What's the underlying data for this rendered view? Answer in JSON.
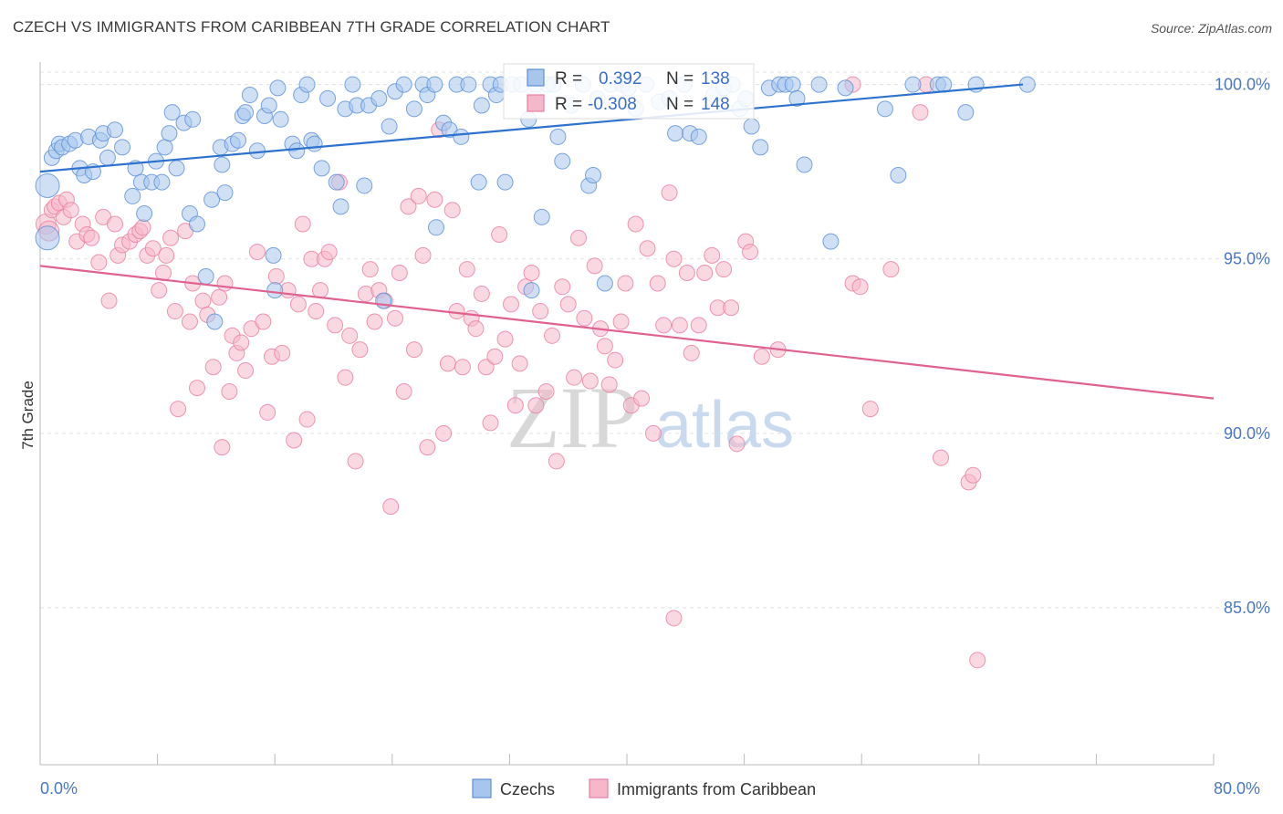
{
  "title": "CZECH VS IMMIGRANTS FROM CARIBBEAN 7TH GRADE CORRELATION CHART",
  "source": "Source: ZipAtlas.com",
  "colors": {
    "blue_fill": "#a8c6ec",
    "blue_stroke": "#5b8fd6",
    "blue_line": "#2e72cf",
    "pink_fill": "#f5b8cb",
    "pink_stroke": "#e87ea0",
    "pink_line": "#e0628e",
    "grid": "#e2e2e2",
    "axis_text": "#4a78c4"
  },
  "watermark": {
    "zip": "ZIP",
    "atlas": "atlas"
  },
  "stats": {
    "r_label": "R =",
    "n_label": "N =",
    "czech_r": "0.392",
    "czech_n": "138",
    "carib_r": "-0.308",
    "carib_n": "148"
  },
  "legend": {
    "czech": "Czechs",
    "carib": "Immigrants from Caribbean"
  },
  "chart_data": {
    "type": "scatter",
    "title": "CZECH VS IMMIGRANTS FROM CARIBBEAN 7TH GRADE CORRELATION CHART",
    "xlabel": "",
    "ylabel": "7th Grade",
    "xlim": [
      0,
      80
    ],
    "ylim": [
      80.5,
      100.8
    ],
    "x_ticks": [
      "0.0%",
      "80.0%"
    ],
    "y_ticks": [
      {
        "value": 100,
        "label": "100.0%"
      },
      {
        "value": 95,
        "label": "95.0%"
      },
      {
        "value": 90,
        "label": "90.0%"
      },
      {
        "value": 85,
        "label": "85.0%"
      }
    ],
    "legend_position": "bottom",
    "grid": true,
    "series": [
      {
        "name": "Czechs",
        "trend": {
          "x": [
            0,
            67
          ],
          "y": [
            97.5,
            100.0
          ]
        },
        "points": [
          [
            0.5,
            97.1
          ],
          [
            0.5,
            95.6
          ],
          [
            0.8,
            97.9
          ],
          [
            1.1,
            98.1
          ],
          [
            1.3,
            98.3
          ],
          [
            1.5,
            98.2
          ],
          [
            2,
            98.3
          ],
          [
            2.4,
            98.4
          ],
          [
            2.7,
            97.6
          ],
          [
            3,
            97.4
          ],
          [
            3.3,
            98.5
          ],
          [
            3.6,
            97.5
          ],
          [
            4.1,
            98.4
          ],
          [
            4.3,
            98.6
          ],
          [
            4.6,
            97.9
          ],
          [
            5.1,
            98.7
          ],
          [
            5.6,
            98.2
          ],
          [
            6.3,
            96.8
          ],
          [
            6.5,
            97.6
          ],
          [
            6.9,
            97.2
          ],
          [
            7.1,
            96.3
          ],
          [
            7.6,
            97.2
          ],
          [
            7.9,
            97.8
          ],
          [
            8.3,
            97.2
          ],
          [
            8.5,
            98.2
          ],
          [
            8.8,
            98.6
          ],
          [
            9,
            99.2
          ],
          [
            9.3,
            97.6
          ],
          [
            9.8,
            98.9
          ],
          [
            10.4,
            99
          ],
          [
            10.2,
            96.3
          ],
          [
            10.7,
            96
          ],
          [
            11.3,
            94.5
          ],
          [
            11.7,
            96.7
          ],
          [
            11.9,
            93.2
          ],
          [
            12.3,
            98.2
          ],
          [
            12.4,
            97.7
          ],
          [
            12.6,
            96.9
          ],
          [
            13.1,
            98.3
          ],
          [
            13.5,
            98.4
          ],
          [
            13.8,
            99.1
          ],
          [
            14,
            99.2
          ],
          [
            14.3,
            99.7
          ],
          [
            14.8,
            98.1
          ],
          [
            15.3,
            99.1
          ],
          [
            15.6,
            99.4
          ],
          [
            15.9,
            95.1
          ],
          [
            16,
            94.1
          ],
          [
            16.2,
            99.9
          ],
          [
            16.4,
            99
          ],
          [
            17.2,
            98.3
          ],
          [
            17.5,
            98.1
          ],
          [
            17.8,
            99.7
          ],
          [
            18.2,
            100
          ],
          [
            18.5,
            98.4
          ],
          [
            18.7,
            98.3
          ],
          [
            19.2,
            97.6
          ],
          [
            19.6,
            99.6
          ],
          [
            20.2,
            97.2
          ],
          [
            20.5,
            96.5
          ],
          [
            20.8,
            99.3
          ],
          [
            21.3,
            100
          ],
          [
            21.6,
            99.4
          ],
          [
            22.1,
            97.1
          ],
          [
            22.4,
            99.4
          ],
          [
            23.1,
            99.6
          ],
          [
            23.4,
            93.8
          ],
          [
            23.8,
            98.8
          ],
          [
            24.2,
            99.8
          ],
          [
            24.8,
            100
          ],
          [
            25.5,
            99.3
          ],
          [
            26.1,
            100
          ],
          [
            26.4,
            99.7
          ],
          [
            26.9,
            100
          ],
          [
            27,
            95.9
          ],
          [
            27.5,
            98.9
          ],
          [
            27.9,
            98.7
          ],
          [
            28.4,
            100
          ],
          [
            28.7,
            98.5
          ],
          [
            29.2,
            100
          ],
          [
            29.9,
            97.2
          ],
          [
            30.1,
            99.4
          ],
          [
            30.7,
            100
          ],
          [
            31.1,
            99.7
          ],
          [
            31.4,
            100
          ],
          [
            31.7,
            97.2
          ],
          [
            32.2,
            100
          ],
          [
            32.8,
            100
          ],
          [
            33.3,
            99
          ],
          [
            33.5,
            94.1
          ],
          [
            33.8,
            100
          ],
          [
            34.2,
            96.2
          ],
          [
            34.6,
            100
          ],
          [
            35,
            100
          ],
          [
            35.3,
            98.5
          ],
          [
            35.6,
            97.8
          ],
          [
            36.2,
            99.4
          ],
          [
            37,
            100
          ],
          [
            37.4,
            97.1
          ],
          [
            37.7,
            97.4
          ],
          [
            38,
            99.6
          ],
          [
            38.5,
            94.3
          ],
          [
            38.9,
            100
          ],
          [
            39.7,
            100
          ],
          [
            40.1,
            99.9
          ],
          [
            40.6,
            99.3
          ],
          [
            41.3,
            100
          ],
          [
            42.2,
            99.5
          ],
          [
            42.9,
            99.6
          ],
          [
            43.3,
            98.6
          ],
          [
            43.9,
            100
          ],
          [
            44.3,
            98.6
          ],
          [
            44.9,
            98.5
          ],
          [
            45.9,
            99.7
          ],
          [
            46.6,
            99.9
          ],
          [
            47.2,
            100
          ],
          [
            47.7,
            99.3
          ],
          [
            48.1,
            99.6
          ],
          [
            48.5,
            98.8
          ],
          [
            49.1,
            98.2
          ],
          [
            49.7,
            99.9
          ],
          [
            50.4,
            100
          ],
          [
            50.8,
            100
          ],
          [
            51.3,
            100
          ],
          [
            51.6,
            99.6
          ],
          [
            52.1,
            97.7
          ],
          [
            53.1,
            100
          ],
          [
            53.9,
            95.5
          ],
          [
            54.9,
            99.9
          ],
          [
            57.6,
            99.3
          ],
          [
            58.5,
            97.4
          ],
          [
            59.5,
            100
          ],
          [
            61.2,
            100
          ],
          [
            61.6,
            100
          ],
          [
            63.1,
            99.2
          ],
          [
            63.8,
            100
          ],
          [
            67.3,
            100
          ]
        ]
      },
      {
        "name": "Immigrants from Caribbean",
        "trend": {
          "x": [
            0,
            80
          ],
          "y": [
            94.8,
            91.0
          ]
        },
        "points": [
          [
            0.4,
            96
          ],
          [
            0.6,
            95.8
          ],
          [
            0.8,
            96.4
          ],
          [
            1,
            96.5
          ],
          [
            1.3,
            96.6
          ],
          [
            1.6,
            96.2
          ],
          [
            1.8,
            96.7
          ],
          [
            2.1,
            96.4
          ],
          [
            2.5,
            95.5
          ],
          [
            2.9,
            96
          ],
          [
            3.2,
            95.7
          ],
          [
            3.5,
            95.6
          ],
          [
            4,
            94.9
          ],
          [
            4.3,
            96.2
          ],
          [
            4.7,
            93.8
          ],
          [
            5.1,
            96
          ],
          [
            5.3,
            95.1
          ],
          [
            5.6,
            95.4
          ],
          [
            6.1,
            95.5
          ],
          [
            6.5,
            95.7
          ],
          [
            6.8,
            95.8
          ],
          [
            7,
            95.9
          ],
          [
            7.3,
            95.1
          ],
          [
            7.7,
            95.3
          ],
          [
            8.1,
            94.1
          ],
          [
            8.4,
            94.6
          ],
          [
            8.6,
            95.1
          ],
          [
            8.9,
            95.6
          ],
          [
            9.2,
            93.5
          ],
          [
            9.4,
            90.7
          ],
          [
            9.9,
            95.8
          ],
          [
            10.2,
            93.2
          ],
          [
            10.4,
            94.3
          ],
          [
            10.7,
            91.3
          ],
          [
            11.1,
            93.8
          ],
          [
            11.4,
            93.4
          ],
          [
            11.8,
            91.9
          ],
          [
            12.2,
            93.9
          ],
          [
            12.6,
            94.3
          ],
          [
            12.4,
            89.6
          ],
          [
            12.9,
            91.2
          ],
          [
            13.1,
            92.8
          ],
          [
            13.4,
            92.3
          ],
          [
            13.7,
            92.6
          ],
          [
            14,
            91.8
          ],
          [
            14.4,
            93
          ],
          [
            14.8,
            95.2
          ],
          [
            15.2,
            93.2
          ],
          [
            15.5,
            90.6
          ],
          [
            15.8,
            92.2
          ],
          [
            16.1,
            94.5
          ],
          [
            16.5,
            92.3
          ],
          [
            16.9,
            94.1
          ],
          [
            17.3,
            89.8
          ],
          [
            17.6,
            93.7
          ],
          [
            17.9,
            96
          ],
          [
            18.2,
            90.4
          ],
          [
            18.5,
            95
          ],
          [
            18.8,
            93.5
          ],
          [
            19.1,
            94.1
          ],
          [
            19.4,
            95
          ],
          [
            19.7,
            95.2
          ],
          [
            20.1,
            93.1
          ],
          [
            20.4,
            97.2
          ],
          [
            20.8,
            91.6
          ],
          [
            21.1,
            92.8
          ],
          [
            21.5,
            89.2
          ],
          [
            21.8,
            92.4
          ],
          [
            22.2,
            94
          ],
          [
            22.5,
            94.7
          ],
          [
            22.8,
            93.2
          ],
          [
            23.1,
            94.1
          ],
          [
            23.5,
            93.8
          ],
          [
            23.9,
            87.9
          ],
          [
            24.2,
            93.3
          ],
          [
            24.5,
            94.6
          ],
          [
            24.8,
            91.2
          ],
          [
            25.1,
            96.5
          ],
          [
            25.5,
            92.4
          ],
          [
            25.8,
            96.8
          ],
          [
            26.1,
            95.1
          ],
          [
            26.4,
            89.6
          ],
          [
            26.9,
            96.7
          ],
          [
            27.2,
            98.7
          ],
          [
            27.5,
            90
          ],
          [
            27.8,
            92
          ],
          [
            28.1,
            96.4
          ],
          [
            28.4,
            93.5
          ],
          [
            28.8,
            91.9
          ],
          [
            29.1,
            94.7
          ],
          [
            29.4,
            93.3
          ],
          [
            29.7,
            93
          ],
          [
            30.1,
            94
          ],
          [
            30.4,
            91.9
          ],
          [
            30.7,
            90.3
          ],
          [
            31,
            92.2
          ],
          [
            31.3,
            95.7
          ],
          [
            31.7,
            92.7
          ],
          [
            32.1,
            93.7
          ],
          [
            32.4,
            90.8
          ],
          [
            32.7,
            92
          ],
          [
            33.1,
            94.2
          ],
          [
            33.5,
            94.6
          ],
          [
            33.8,
            90.8
          ],
          [
            34.1,
            93.5
          ],
          [
            34.5,
            91.2
          ],
          [
            34.9,
            92.8
          ],
          [
            35.2,
            89.2
          ],
          [
            35.6,
            94.2
          ],
          [
            36,
            93.7
          ],
          [
            36.4,
            91.6
          ],
          [
            36.7,
            95.6
          ],
          [
            37.1,
            93.3
          ],
          [
            37.5,
            91.5
          ],
          [
            37.8,
            94.8
          ],
          [
            38.2,
            93
          ],
          [
            38.5,
            92.5
          ],
          [
            38.8,
            91.4
          ],
          [
            39.2,
            92.1
          ],
          [
            39.6,
            93.2
          ],
          [
            39.9,
            94.3
          ],
          [
            40.3,
            90.8
          ],
          [
            40.6,
            96
          ],
          [
            41,
            91
          ],
          [
            41.4,
            95.3
          ],
          [
            41.8,
            90
          ],
          [
            42.1,
            94.3
          ],
          [
            42.5,
            93.1
          ],
          [
            42.9,
            96.9
          ],
          [
            43.2,
            95
          ],
          [
            43.6,
            93.1
          ],
          [
            44.1,
            94.6
          ],
          [
            44.4,
            92.3
          ],
          [
            44.9,
            93.1
          ],
          [
            45.3,
            94.6
          ],
          [
            45.8,
            95.1
          ],
          [
            46.2,
            93.6
          ],
          [
            46.6,
            94.7
          ],
          [
            47.1,
            93.6
          ],
          [
            47.5,
            89.7
          ],
          [
            48.1,
            95.5
          ],
          [
            48.4,
            95.2
          ],
          [
            49.2,
            92.2
          ],
          [
            50.3,
            92.4
          ],
          [
            55.4,
            94.3
          ],
          [
            55.9,
            94.2
          ],
          [
            56.6,
            90.7
          ],
          [
            58,
            94.7
          ],
          [
            61.4,
            89.3
          ],
          [
            63.3,
            88.6
          ],
          [
            63.6,
            88.8
          ],
          [
            63.9,
            83.5
          ],
          [
            43.2,
            84.7
          ],
          [
            60.4,
            100
          ],
          [
            60,
            99.2
          ],
          [
            55.4,
            100
          ]
        ]
      }
    ]
  }
}
